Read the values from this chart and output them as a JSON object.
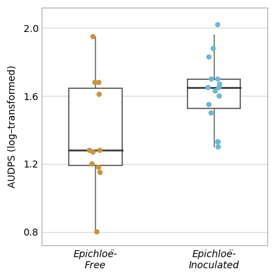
{
  "free_data": [
    0.8,
    1.15,
    1.18,
    1.2,
    1.27,
    1.28,
    1.28,
    1.61,
    1.68,
    1.68,
    1.95
  ],
  "inoc_data": [
    1.3,
    1.33,
    1.33,
    1.5,
    1.55,
    1.6,
    1.63,
    1.65,
    1.65,
    1.67,
    1.7,
    1.7,
    1.83,
    1.88,
    2.02
  ],
  "free_color": "#C9943A",
  "inoc_color": "#6BB8D4",
  "box_facecolor": "white",
  "box_edgecolor": "#555555",
  "median_color": "#333333",
  "whisker_color": "#555555",
  "panel_background": "#ffffff",
  "fig_background": "#ffffff",
  "grid_color": "#dddddd",
  "spine_color": "#aaaaaa",
  "ylabel": "AUDPS (log–transformed)",
  "xlabels": [
    "Epichloë-\nFree",
    "Epichloë-\nInoculated"
  ],
  "ylim": [
    0.72,
    2.12
  ],
  "yticks": [
    0.8,
    1.2,
    1.6,
    2.0
  ],
  "xlim": [
    0.55,
    2.45
  ],
  "positions": [
    1,
    2
  ],
  "box_width": 0.45,
  "figsize": [
    3.96,
    4.0
  ],
  "dpi": 100
}
